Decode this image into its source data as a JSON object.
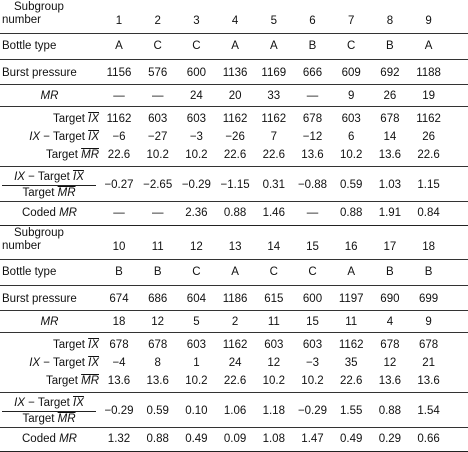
{
  "labels": {
    "subgroup_1": "Subgroup",
    "subgroup_2": "number",
    "bottle_type": "Bottle type",
    "burst_pressure": "Burst pressure",
    "mr": "MR",
    "target": "Target ",
    "ix_sym": "IX",
    "ix_prefix": "IX",
    "minus_target": " − Target ",
    "mr_sym": "MR",
    "coded": "Coded "
  },
  "sections": [
    {
      "subgroups": [
        "1",
        "2",
        "3",
        "4",
        "5",
        "6",
        "7",
        "8",
        "9"
      ],
      "bottle_type": [
        "A",
        "C",
        "C",
        "A",
        "A",
        "B",
        "C",
        "B",
        "A"
      ],
      "burst_pressure": [
        "1156",
        "576",
        "600",
        "1136",
        "1169",
        "666",
        "609",
        "692",
        "1188"
      ],
      "mr": [
        "—",
        "—",
        "24",
        "20",
        "33",
        "—",
        "9",
        "26",
        "19"
      ],
      "target_ix": [
        "1162",
        "603",
        "603",
        "1162",
        "1162",
        "678",
        "603",
        "678",
        "1162"
      ],
      "ix_minus_target": [
        "−6",
        "−27",
        "−3",
        "−26",
        "7",
        "−12",
        "6",
        "14",
        "26"
      ],
      "target_mr": [
        "22.6",
        "10.2",
        "10.2",
        "22.6",
        "22.6",
        "13.6",
        "10.2",
        "13.6",
        "22.6"
      ],
      "ratio": [
        "−0.27",
        "−2.65",
        "−0.29",
        "−1.15",
        "0.31",
        "−0.88",
        "0.59",
        "1.03",
        "1.15"
      ],
      "coded_mr": [
        "—",
        "—",
        "2.36",
        "0.88",
        "1.46",
        "—",
        "0.88",
        "1.91",
        "0.84"
      ]
    },
    {
      "subgroups": [
        "10",
        "11",
        "12",
        "13",
        "14",
        "15",
        "16",
        "17",
        "18"
      ],
      "bottle_type": [
        "B",
        "B",
        "C",
        "A",
        "C",
        "C",
        "A",
        "B",
        "B"
      ],
      "burst_pressure": [
        "674",
        "686",
        "604",
        "1186",
        "615",
        "600",
        "1197",
        "690",
        "699"
      ],
      "mr": [
        "18",
        "12",
        "5",
        "2",
        "11",
        "15",
        "11",
        "4",
        "9"
      ],
      "target_ix": [
        "678",
        "678",
        "603",
        "1162",
        "603",
        "603",
        "1162",
        "678",
        "678"
      ],
      "ix_minus_target": [
        "−4",
        "8",
        "1",
        "24",
        "12",
        "−3",
        "35",
        "12",
        "21"
      ],
      "target_mr": [
        "13.6",
        "13.6",
        "10.2",
        "22.6",
        "10.2",
        "10.2",
        "22.6",
        "13.6",
        "13.6"
      ],
      "ratio": [
        "−0.29",
        "0.59",
        "0.10",
        "1.06",
        "1.18",
        "−0.29",
        "1.55",
        "0.88",
        "1.54"
      ],
      "coded_mr": [
        "1.32",
        "0.88",
        "0.49",
        "0.09",
        "1.08",
        "1.47",
        "0.49",
        "0.29",
        "0.66"
      ]
    }
  ]
}
